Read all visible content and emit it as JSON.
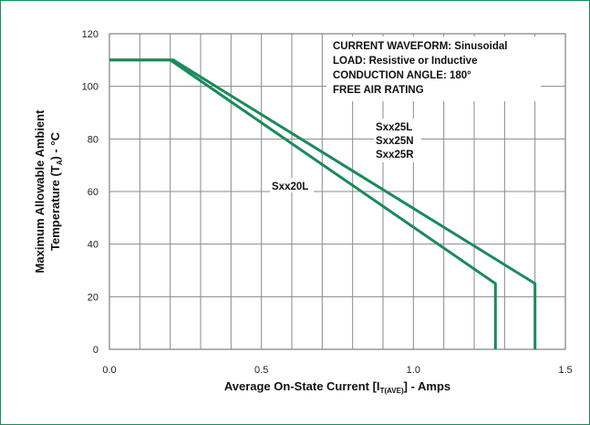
{
  "chart_data": {
    "type": "line",
    "xlabel_main": "Average On-State Current [I",
    "xlabel_sub": "T(AVE)",
    "xlabel_tail": "] - Amps",
    "ylabel_line1": "Maximum Allowable Ambient",
    "ylabel_line2_main": "Temperature (T",
    "ylabel_line2_sub": "A",
    "ylabel_line2_tail": ") - °C",
    "xlim": [
      0.0,
      1.5
    ],
    "ylim": [
      0,
      120
    ],
    "x_ticks": [
      "0.0",
      "0.5",
      "1.0",
      "1.5"
    ],
    "x_tick_values": [
      0.0,
      0.5,
      1.0,
      1.5
    ],
    "y_ticks": [
      "0",
      "20",
      "40",
      "60",
      "80",
      "100",
      "120"
    ],
    "y_tick_values": [
      0,
      20,
      40,
      60,
      80,
      100,
      120
    ],
    "x_grid_step": 0.1,
    "y_grid_step": 20,
    "grid": true,
    "line_color": "#1a8a5a",
    "annotations": [
      "CURRENT WAVEFORM: Sinusoidal",
      "LOAD: Resistive or Inductive",
      "CONDUCTION ANGLE: 180°",
      "FREE AIR RATING"
    ],
    "series": [
      {
        "name": "Sxx20L",
        "labels": [
          "Sxx20L"
        ],
        "x": [
          0.0,
          0.2,
          1.27,
          1.27,
          1.27
        ],
        "y": [
          110,
          110,
          25,
          25,
          0
        ]
      },
      {
        "name": "Sxx25L / Sxx25N / Sxx25R",
        "labels": [
          "Sxx25L",
          "Sxx25N",
          "Sxx25R"
        ],
        "x": [
          0.0,
          0.21,
          1.4,
          1.4
        ],
        "y": [
          110,
          110,
          25,
          0
        ]
      }
    ]
  }
}
